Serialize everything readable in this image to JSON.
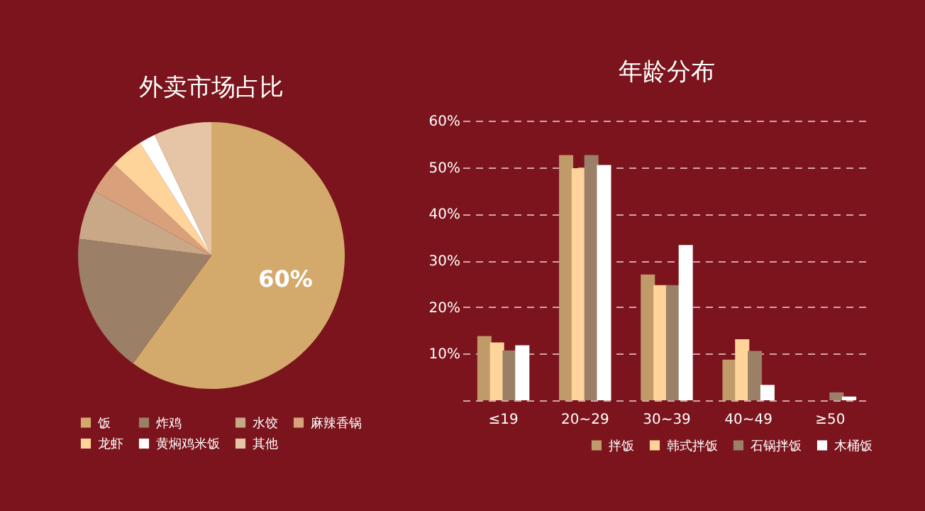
{
  "chart_data": [
    {
      "type": "pie",
      "title": "外卖市场占比",
      "categories": [
        "饭",
        "炸鸡",
        "水饺",
        "麻辣香锅",
        "龙虾",
        "黄焖鸡米饭",
        "其他"
      ],
      "values": [
        60,
        17,
        6,
        4,
        4,
        2,
        7
      ],
      "colors": [
        "#d4a96c",
        "#9b7f66",
        "#c8a886",
        "#d9a07c",
        "#ffd49a",
        "#ffffff",
        "#e6c5a6"
      ],
      "value_labels": [
        "60%",
        null,
        null,
        null,
        null,
        null,
        null
      ],
      "legend": "bottom"
    },
    {
      "type": "bar",
      "title": "年龄分布",
      "categories": [
        "≤19",
        "20~29",
        "30~39",
        "40~49",
        "≥50"
      ],
      "series": [
        {
          "name": "拌饭",
          "color": "#c09a68",
          "values": [
            13.8,
            52.6,
            27.0,
            8.7,
            null
          ]
        },
        {
          "name": "韩式拌饭",
          "color": "#ffd49a",
          "values": [
            12.4,
            49.8,
            24.7,
            13.1,
            null
          ]
        },
        {
          "name": "石锅拌饭",
          "color": "#9b7f66",
          "values": [
            10.7,
            52.6,
            24.7,
            10.6,
            1.7
          ]
        },
        {
          "name": "木桶饭",
          "color": "#ffffff",
          "values": [
            11.8,
            50.5,
            33.3,
            3.3,
            0.8
          ]
        }
      ],
      "ylim": [
        0,
        60
      ],
      "yticks": [
        {
          "value": 0,
          "label": null
        },
        {
          "value": 10,
          "label": "10%"
        },
        {
          "value": 20,
          "label": "20%"
        },
        {
          "value": 30,
          "label": "30%"
        },
        {
          "value": 40,
          "label": "40%"
        },
        {
          "value": 50,
          "label": "50%"
        },
        {
          "value": 60,
          "label": "60%"
        }
      ],
      "grid": "y",
      "legend": "bottom right"
    }
  ]
}
